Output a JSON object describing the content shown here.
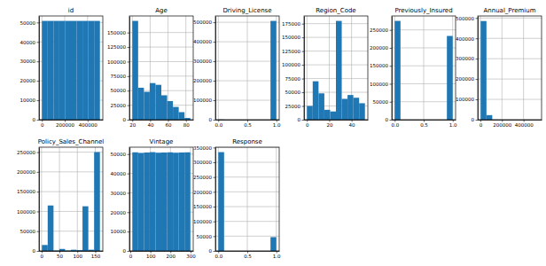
{
  "chart_data": [
    {
      "type": "histogram",
      "title": "id",
      "color": "#1f77b4",
      "grid": true,
      "bins": [
        1,
        50815.5,
        101630,
        152444.5,
        203259,
        254073.5,
        304888,
        355702.5,
        406517,
        457331.5,
        508146
      ],
      "values": [
        50815,
        50815,
        50815,
        50814,
        50815,
        50815,
        50814,
        50815,
        50814,
        50814
      ],
      "xlim": [
        -25406,
        533553
      ],
      "ylim": [
        0,
        53356
      ],
      "xticks": [
        0,
        200000,
        400000
      ],
      "yticks": [
        0,
        10000,
        20000,
        30000,
        40000,
        50000
      ]
    },
    {
      "type": "histogram",
      "title": "Age",
      "color": "#1f77b4",
      "grid": true,
      "bins": [
        20,
        26.5,
        33,
        39.5,
        46,
        52.5,
        59,
        65.5,
        72,
        78.5,
        85
      ],
      "values": [
        170000,
        55000,
        48000,
        63000,
        60000,
        42000,
        32000,
        22000,
        13000,
        3000
      ],
      "xlim": [
        16.75,
        88.25
      ],
      "ylim": [
        0,
        178500
      ],
      "xticks": [
        20,
        40,
        60,
        80
      ],
      "yticks": [
        0,
        25000,
        50000,
        75000,
        100000,
        125000,
        150000
      ]
    },
    {
      "type": "histogram",
      "title": "Driving_License",
      "color": "#1f77b4",
      "grid": true,
      "bins": [
        0,
        0.1,
        0.2,
        0.3,
        0.4,
        0.5,
        0.6,
        0.7,
        0.8,
        0.9,
        1.0
      ],
      "values": [
        1091,
        0,
        0,
        0,
        0,
        0,
        0,
        0,
        0,
        507055
      ],
      "xlim": [
        -0.05,
        1.05
      ],
      "ylim": [
        0,
        532408
      ],
      "xticks": [
        {
          "value": 0,
          "label": "0.0"
        },
        {
          "value": 0.5,
          "label": "0.5"
        },
        {
          "value": 1,
          "label": "1.0"
        }
      ],
      "yticks": [
        0,
        100000,
        200000,
        300000,
        400000,
        500000
      ]
    },
    {
      "type": "histogram",
      "title": "Region_Code",
      "color": "#1f77b4",
      "grid": true,
      "bins": [
        0,
        5.2,
        10.4,
        15.6,
        20.8,
        26,
        31.2,
        36.4,
        41.6,
        46.8,
        52
      ],
      "values": [
        25000,
        70000,
        48000,
        18000,
        15000,
        180000,
        38000,
        45000,
        40000,
        30000
      ],
      "xlim": [
        -2.6,
        54.6
      ],
      "ylim": [
        0,
        189000
      ],
      "xticks": [
        0,
        20,
        40
      ],
      "yticks": [
        0,
        25000,
        50000,
        75000,
        100000,
        125000,
        150000,
        175000
      ]
    },
    {
      "type": "histogram",
      "title": "Previously_Insured",
      "color": "#1f77b4",
      "grid": true,
      "bins": [
        0,
        0.1,
        0.2,
        0.3,
        0.4,
        0.5,
        0.6,
        0.7,
        0.8,
        0.9,
        1.0
      ],
      "values": [
        275000,
        0,
        0,
        0,
        0,
        0,
        0,
        0,
        0,
        233146
      ],
      "xlim": [
        -0.05,
        1.05
      ],
      "ylim": [
        0,
        288750
      ],
      "xticks": [
        {
          "value": 0,
          "label": "0.0"
        },
        {
          "value": 0.5,
          "label": "0.5"
        },
        {
          "value": 1,
          "label": "1.0"
        }
      ],
      "yticks": [
        0,
        50000,
        100000,
        150000,
        200000,
        250000
      ]
    },
    {
      "type": "histogram",
      "title": "Annual_Premium",
      "color": "#1f77b4",
      "grid": true,
      "bins": [
        2630,
        56383.5,
        110137,
        163890.5,
        217644,
        271397.5,
        325151,
        378904.5,
        432658,
        486411.5,
        540165
      ],
      "values": [
        485000,
        22500,
        400,
        100,
        50,
        20,
        10,
        5,
        5,
        10
      ],
      "xlim": [
        -24247,
        567042
      ],
      "ylim": [
        0,
        510000
      ],
      "xticks": [
        0,
        200000,
        400000
      ],
      "yticks": [
        0,
        100000,
        200000,
        300000,
        400000,
        500000
      ]
    },
    {
      "type": "histogram",
      "title": "Policy_Sales_Channel",
      "color": "#1f77b4",
      "grid": true,
      "bins": [
        1,
        17.2,
        33.4,
        49.6,
        65.8,
        82,
        98.2,
        114.4,
        130.6,
        146.8,
        163
      ],
      "values": [
        15000,
        115000,
        1000,
        5000,
        1000,
        3000,
        2000,
        113000,
        3000,
        250000
      ],
      "xlim": [
        -7.1,
        171.1
      ],
      "ylim": [
        0,
        262500
      ],
      "xticks": [
        0,
        50,
        100,
        150
      ],
      "yticks": [
        0,
        50000,
        100000,
        150000,
        200000,
        250000
      ]
    },
    {
      "type": "histogram",
      "title": "Vintage",
      "color": "#1f77b4",
      "grid": true,
      "bins": [
        10,
        38.9,
        67.8,
        96.7,
        125.6,
        154.5,
        183.4,
        212.3,
        241.2,
        270.1,
        299
      ],
      "values": [
        50900,
        50600,
        50800,
        51000,
        50700,
        50800,
        50900,
        50700,
        50800,
        50900
      ],
      "xlim": [
        -4.45,
        313.45
      ],
      "ylim": [
        0,
        53550
      ],
      "xticks": [
        0,
        100,
        200,
        300
      ],
      "yticks": [
        0,
        10000,
        20000,
        30000,
        40000,
        50000
      ]
    },
    {
      "type": "histogram",
      "title": "Response",
      "color": "#1f77b4",
      "grid": true,
      "bins": [
        0,
        0.1,
        0.2,
        0.3,
        0.4,
        0.5,
        0.6,
        0.7,
        0.8,
        0.9,
        1.0
      ],
      "values": [
        334399,
        0,
        0,
        0,
        0,
        0,
        0,
        0,
        0,
        46710
      ],
      "xlim": [
        -0.05,
        1.05
      ],
      "ylim": [
        0,
        351119
      ],
      "xticks": [
        {
          "value": 0,
          "label": "0.0"
        },
        {
          "value": 0.5,
          "label": "0.5"
        },
        {
          "value": 1,
          "label": "1.0"
        }
      ],
      "yticks": [
        0,
        50000,
        100000,
        150000,
        200000,
        250000,
        300000,
        350000
      ]
    }
  ]
}
